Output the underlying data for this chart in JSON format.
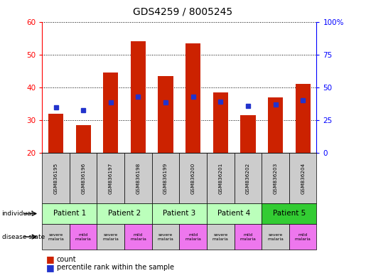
{
  "title": "GDS4259 / 8005245",
  "samples": [
    "GSM836195",
    "GSM836196",
    "GSM836197",
    "GSM836198",
    "GSM836199",
    "GSM836200",
    "GSM836201",
    "GSM836202",
    "GSM836203",
    "GSM836204"
  ],
  "counts": [
    32.0,
    28.5,
    44.5,
    54.0,
    43.5,
    53.5,
    38.5,
    31.5,
    37.0,
    41.0
  ],
  "percentiles": [
    35.0,
    32.5,
    38.5,
    43.0,
    38.5,
    43.0,
    39.0,
    36.0,
    37.0,
    40.0
  ],
  "ylim_left": [
    20,
    60
  ],
  "ylim_right": [
    0,
    100
  ],
  "yticks_left": [
    20,
    30,
    40,
    50,
    60
  ],
  "yticks_right": [
    0,
    25,
    50,
    75,
    100
  ],
  "ytick_labels_right": [
    "0",
    "25",
    "50",
    "75",
    "100%"
  ],
  "bar_color": "#cc2200",
  "dot_color": "#2233cc",
  "patients": [
    "Patient 1",
    "Patient 2",
    "Patient 3",
    "Patient 4",
    "Patient 5"
  ],
  "patient_colors": [
    "#bbffbb",
    "#bbffbb",
    "#bbffbb",
    "#bbffbb",
    "#33cc33"
  ],
  "severe_color": "#cccccc",
  "mild_color": "#ee77ee",
  "sample_bg_color": "#cccccc",
  "title_fontsize": 10
}
